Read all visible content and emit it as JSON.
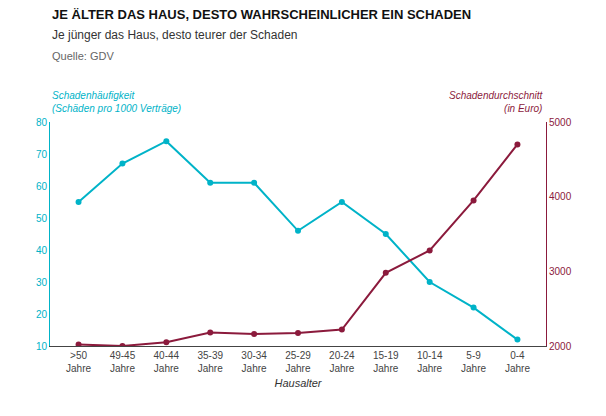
{
  "chart_data": {
    "type": "line",
    "title": "JE ÄLTER DAS HAUS, DESTO WAHRSCHEINLICHER EIN SCHADEN",
    "subtitle": "Je jünger das Haus, desto teurer der Schaden",
    "source": "Quelle: GDV",
    "x_label": "Hausalter",
    "categories": [
      ">50\nJahre",
      "49-45\nJahre",
      "40-44\nJahre",
      "35-39\nJahre",
      "30-34\nJahre",
      "25-29\nJahre",
      "20-24\nJahre",
      "15-19\nJahre",
      "10-14\nJahre",
      "5-9\nJahre",
      "0-4\nJahre"
    ],
    "series": [
      {
        "name": "Schadenhäufigkeit\n(Schäden pro 1000 Verträge)",
        "color": "#00b3c8",
        "marker": "circle",
        "values": [
          55,
          67,
          74,
          61,
          61,
          46,
          55,
          45,
          30,
          22,
          12
        ]
      },
      {
        "name": "Schadendurchschnitt\n(in Euro)",
        "color": "#8b1a3c",
        "marker": "circle",
        "axis": "y2",
        "values": [
          2020,
          2000,
          2050,
          2180,
          2160,
          2175,
          2220,
          2980,
          3280,
          3950,
          4700
        ]
      }
    ],
    "ylim": [
      10,
      80
    ],
    "yticks": [
      10,
      20,
      30,
      40,
      50,
      60,
      70,
      80
    ],
    "y2lim": [
      2000,
      5000
    ],
    "y2ticks": [
      2000,
      3000,
      4000,
      5000
    ],
    "grid": false,
    "legend": "none"
  }
}
